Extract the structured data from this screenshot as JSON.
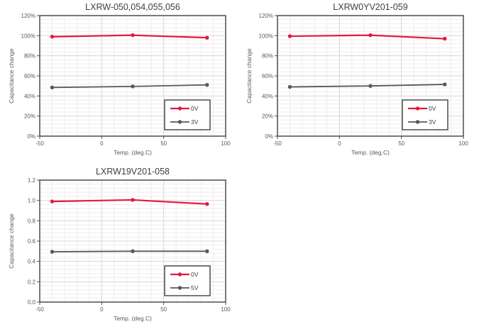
{
  "figure": {
    "background": "#ffffff"
  },
  "colors": {
    "red_series": "#e8173c",
    "gray_series": "#55595e",
    "grid_major": "#d6d6d6",
    "grid_minor": "#eeeeee",
    "axis_border": "#4d4d4d",
    "tick_text": "#595959",
    "title_text": "#404040",
    "legend_border": "#3f3f3f",
    "legend_bg": "#ffffff"
  },
  "chart_data": [
    {
      "type": "line",
      "title": "LXRW-050,054,055,056",
      "xlabel": "Temp. (deg.C)",
      "ylabel": "Capacitance change",
      "xlim": [
        -50,
        100
      ],
      "x_major": 50,
      "x_minor": 10,
      "x_tick_labels": [
        "-50",
        "0",
        "50",
        "100"
      ],
      "ylim": [
        0,
        1.2
      ],
      "y_major": 0.2,
      "y_minor": 0.04,
      "y_tick_labels": [
        "0%",
        "20%",
        "40%",
        "60%",
        "80%",
        "100%",
        "120%"
      ],
      "grid": true,
      "legend_position": "bottom-right",
      "x": [
        -40,
        25,
        85
      ],
      "series": [
        {
          "name": "0V",
          "color": "red_series",
          "values": [
            0.99,
            1.005,
            0.98
          ]
        },
        {
          "name": "3V",
          "color": "gray_series",
          "values": [
            0.485,
            0.495,
            0.51
          ]
        }
      ]
    },
    {
      "type": "line",
      "title": "LXRW0YV201-059",
      "xlabel": "Temp. (deg.C)",
      "ylabel": "Capacitance change",
      "xlim": [
        -50,
        100
      ],
      "x_major": 50,
      "x_minor": 10,
      "x_tick_labels": [
        "-50",
        "0",
        "50",
        "100"
      ],
      "ylim": [
        0,
        1.2
      ],
      "y_major": 0.2,
      "y_minor": 0.04,
      "y_tick_labels": [
        "0%",
        "20%",
        "40%",
        "60%",
        "80%",
        "100%",
        "120%"
      ],
      "grid": true,
      "legend_position": "bottom-right",
      "x": [
        -40,
        25,
        85
      ],
      "series": [
        {
          "name": "0V",
          "color": "red_series",
          "values": [
            0.995,
            1.005,
            0.97
          ]
        },
        {
          "name": "3V",
          "color": "gray_series",
          "values": [
            0.49,
            0.5,
            0.515
          ]
        }
      ]
    },
    {
      "type": "line",
      "title": "LXRW19V201-058",
      "xlabel": "Temp. (deg.C)",
      "ylabel": "Capacitance change",
      "xlim": [
        -50,
        100
      ],
      "x_major": 50,
      "x_minor": 10,
      "x_tick_labels": [
        "-50",
        "0",
        "50",
        "100"
      ],
      "ylim": [
        0,
        1.2
      ],
      "y_major": 0.2,
      "y_minor": 0.04,
      "y_tick_labels": [
        "0.0",
        "0.2",
        "0.4",
        "0.6",
        "0.8",
        "1.0",
        "1.2"
      ],
      "grid": true,
      "legend_position": "bottom-right",
      "x": [
        -40,
        25,
        85
      ],
      "series": [
        {
          "name": "0V",
          "color": "red_series",
          "values": [
            0.99,
            1.005,
            0.965
          ]
        },
        {
          "name": "5V",
          "color": "gray_series",
          "values": [
            0.495,
            0.5,
            0.5
          ]
        }
      ]
    }
  ]
}
